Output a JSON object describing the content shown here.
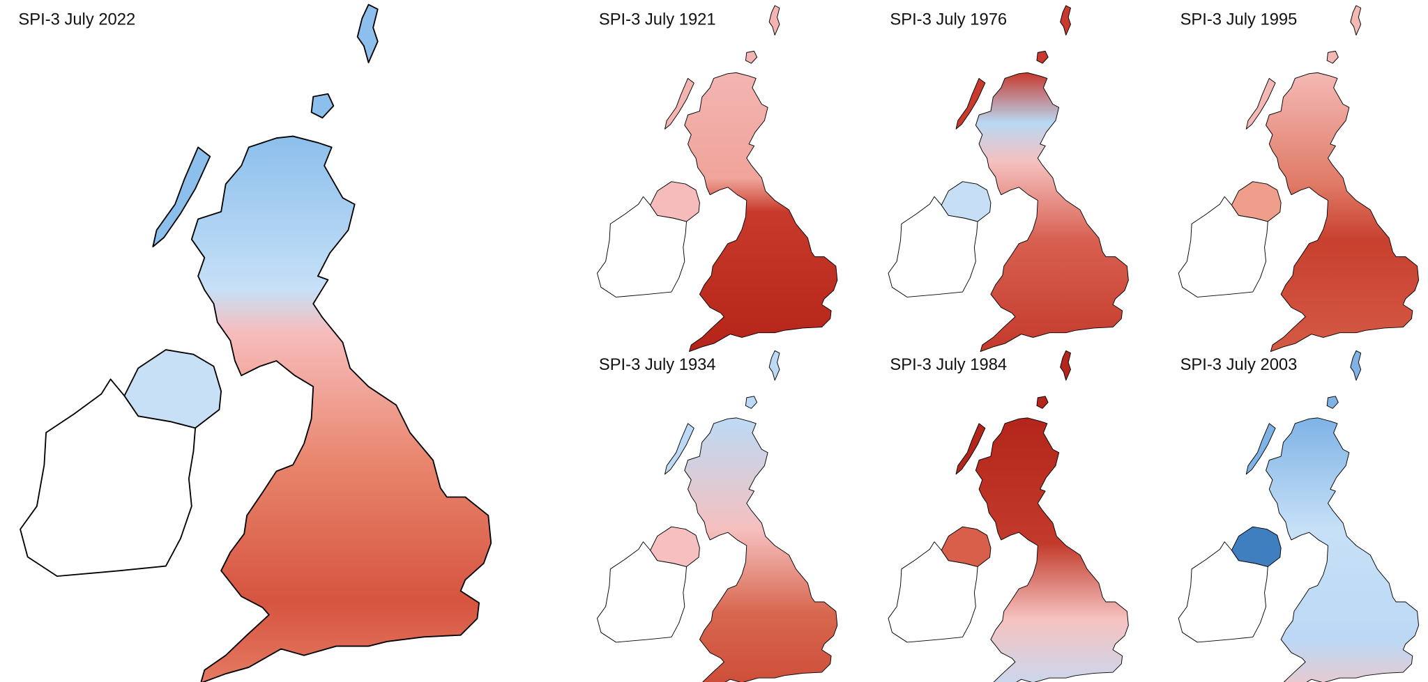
{
  "maps": [
    {
      "title": "SPI-3 July 2022"
    },
    {
      "title": "SPI-3 July 1921"
    },
    {
      "title": "SPI-3 July 1976"
    },
    {
      "title": "SPI-3 July 1995"
    },
    {
      "title": "SPI-3 July 1934"
    },
    {
      "title": "SPI-3 July 1984"
    },
    {
      "title": "SPI-3 July 2003"
    }
  ]
}
